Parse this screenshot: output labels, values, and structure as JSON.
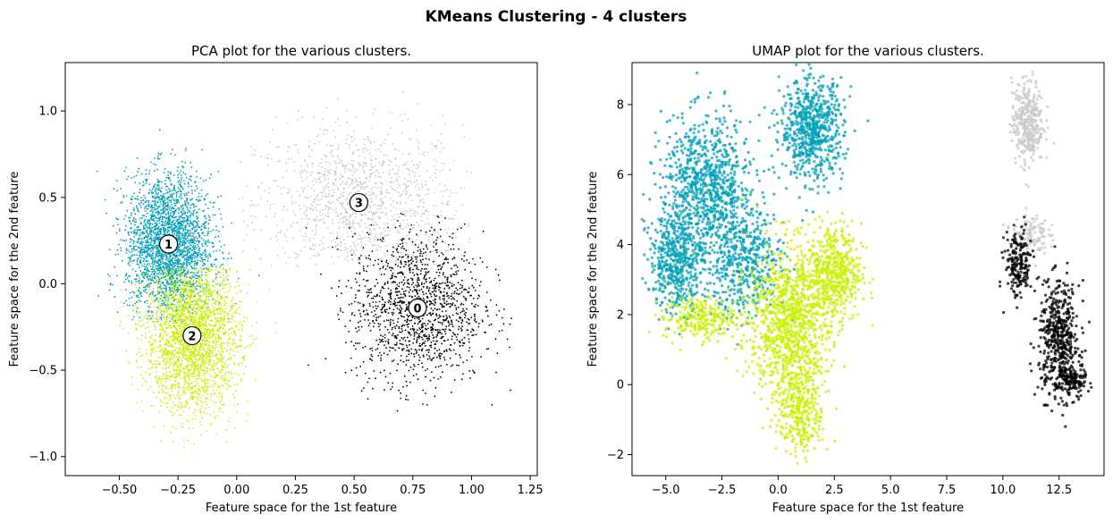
{
  "figure": {
    "suptitle": "KMeans Clustering - 4 clusters"
  },
  "colors": {
    "cluster_0": "#000000",
    "cluster_1": "#00a0b8",
    "cluster_2": "#c8f000",
    "cluster_3": "#c8c8c8"
  },
  "chart_data": [
    {
      "type": "scatter",
      "title": "PCA plot for the various clusters.",
      "xlabel": "Feature space for the 1st feature",
      "ylabel": "Feature space for the 2nd feature",
      "xlim": [
        -0.73,
        1.28
      ],
      "ylim": [
        -1.11,
        1.28
      ],
      "xticks": [
        -0.5,
        -0.25,
        0.0,
        0.25,
        0.5,
        0.75,
        1.0,
        1.25
      ],
      "xtick_labels": [
        "−0.50",
        "−0.25",
        "0.00",
        "0.25",
        "0.50",
        "0.75",
        "1.00",
        "1.25"
      ],
      "yticks": [
        -1.0,
        -0.5,
        0.0,
        0.5,
        1.0
      ],
      "ytick_labels": [
        "−1.0",
        "−0.5",
        "0.0",
        "0.5",
        "1.0"
      ],
      "grid": false,
      "clusters": [
        {
          "label": "0",
          "center": [
            0.77,
            -0.14
          ],
          "color": "#000000",
          "spread": [
            0.14,
            0.22
          ],
          "count": 1400,
          "xlim": [
            0.28,
            1.18
          ],
          "ylim": [
            -0.78,
            0.45
          ]
        },
        {
          "label": "1",
          "center": [
            -0.29,
            0.23
          ],
          "color": "#00a0b8",
          "spread": [
            0.09,
            0.2
          ],
          "count": 2600,
          "xlim": [
            -0.65,
            0.1
          ],
          "ylim": [
            -0.22,
            0.9
          ]
        },
        {
          "label": "2",
          "center": [
            -0.19,
            -0.3
          ],
          "color": "#c8f000",
          "spread": [
            0.1,
            0.22
          ],
          "count": 2600,
          "xlim": [
            -0.5,
            0.35
          ],
          "ylim": [
            -0.95,
            0.1
          ]
        },
        {
          "label": "3",
          "center": [
            0.52,
            0.47
          ],
          "color": "#c8c8c8",
          "spread": [
            0.22,
            0.22
          ],
          "count": 1300,
          "xlim": [
            0.0,
            1.0
          ],
          "ylim": [
            0.1,
            1.15
          ]
        }
      ]
    },
    {
      "type": "scatter",
      "title": "UMAP plot for the various clusters.",
      "xlabel": "Feature space for the 1st feature",
      "ylabel": "Feature space for the 2nd feature",
      "xlim": [
        -6.5,
        14.5
      ],
      "ylim": [
        -2.6,
        9.2
      ],
      "xticks": [
        -5.0,
        -2.5,
        0.0,
        2.5,
        5.0,
        7.5,
        10.0,
        12.5
      ],
      "xtick_labels": [
        "−5.0",
        "−2.5",
        "0.0",
        "2.5",
        "5.0",
        "7.5",
        "10.0",
        "12.5"
      ],
      "yticks": [
        -2,
        0,
        2,
        4,
        6,
        8
      ],
      "ytick_labels": [
        "−2",
        "0",
        "2",
        "4",
        "6",
        "8"
      ],
      "grid": false,
      "regions": [
        {
          "color": "#00a0b8",
          "center": [
            -3.2,
            5.6
          ],
          "spread": [
            1.0,
            1.0
          ],
          "count": 900
        },
        {
          "color": "#00a0b8",
          "center": [
            -4.5,
            3.5
          ],
          "spread": [
            0.6,
            0.7
          ],
          "count": 500
        },
        {
          "color": "#00a0b8",
          "center": [
            1.5,
            7.3
          ],
          "spread": [
            0.7,
            0.7
          ],
          "count": 700
        },
        {
          "color": "#00a0b8",
          "center": [
            -1.5,
            3.5
          ],
          "spread": [
            0.9,
            0.8
          ],
          "count": 500
        },
        {
          "color": "#c8f000",
          "center": [
            0.5,
            1.8
          ],
          "spread": [
            0.9,
            1.1
          ],
          "count": 1100
        },
        {
          "color": "#c8f000",
          "center": [
            1.0,
            -0.8
          ],
          "spread": [
            0.5,
            0.6
          ],
          "count": 300
        },
        {
          "color": "#c8f000",
          "center": [
            2.5,
            3.2
          ],
          "spread": [
            0.6,
            0.7
          ],
          "count": 500
        },
        {
          "color": "#c8f000",
          "center": [
            -3.5,
            1.9
          ],
          "spread": [
            0.8,
            0.3
          ],
          "count": 250
        },
        {
          "color": "#c8c8c8",
          "center": [
            11.1,
            7.5
          ],
          "spread": [
            0.35,
            0.6
          ],
          "count": 350
        },
        {
          "color": "#c8c8c8",
          "center": [
            11.2,
            4.3
          ],
          "spread": [
            0.4,
            0.3
          ],
          "count": 120
        },
        {
          "color": "#000000",
          "center": [
            12.5,
            1.3
          ],
          "spread": [
            0.45,
            0.8
          ],
          "count": 500
        },
        {
          "color": "#000000",
          "center": [
            10.7,
            3.4
          ],
          "spread": [
            0.3,
            0.5
          ],
          "count": 200
        },
        {
          "color": "#000000",
          "center": [
            13.0,
            0.1
          ],
          "spread": [
            0.35,
            0.25
          ],
          "count": 150
        }
      ]
    }
  ]
}
